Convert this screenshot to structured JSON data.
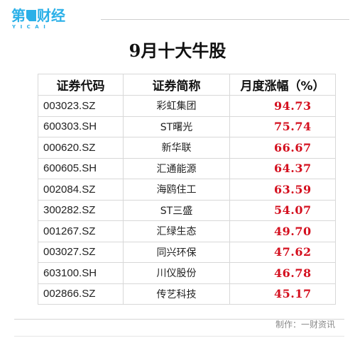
{
  "logo": {
    "cn_first": "第",
    "cn_rest": "财经",
    "sub": "YICAI"
  },
  "title": "9月十大牛股",
  "table": {
    "headers": [
      "证券代码",
      "证券简称",
      "月度涨幅（%）"
    ],
    "rows": [
      {
        "code": "003023.SZ",
        "name": "彩虹集团",
        "pct": "94.73"
      },
      {
        "code": "600303.SH",
        "name": "ST曙光",
        "pct": "75.74"
      },
      {
        "code": "000620.SZ",
        "name": "新华联",
        "pct": "66.67"
      },
      {
        "code": "600605.SH",
        "name": "汇通能源",
        "pct": "64.37"
      },
      {
        "code": "002084.SZ",
        "name": "海鸥住工",
        "pct": "63.59"
      },
      {
        "code": "300282.SZ",
        "name": "ST三盛",
        "pct": "54.07"
      },
      {
        "code": "001267.SZ",
        "name": "汇绿生态",
        "pct": "49.70"
      },
      {
        "code": "003027.SZ",
        "name": "同兴环保",
        "pct": "47.62"
      },
      {
        "code": "603100.SH",
        "name": "川仪股份",
        "pct": "46.78"
      },
      {
        "code": "002866.SZ",
        "name": "传艺科技",
        "pct": "45.17"
      }
    ]
  },
  "footer": {
    "credit": "制作：一财资讯"
  },
  "colors": {
    "brand": "#2ab0e8",
    "percent": "#d40f1e",
    "grid": "#d8d8d8",
    "credit": "#8a8a8a"
  }
}
